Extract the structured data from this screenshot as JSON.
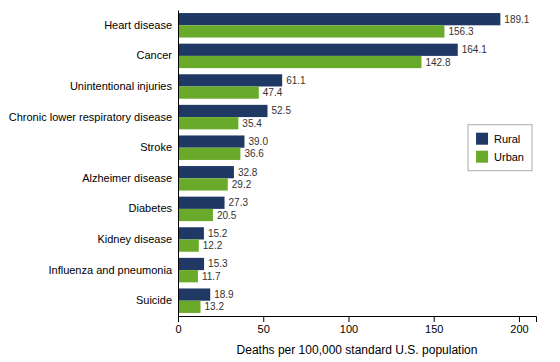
{
  "chart_data": {
    "type": "bar",
    "orientation": "horizontal",
    "categories": [
      "Heart disease",
      "Cancer",
      "Unintentional injuries",
      "Chronic lower respiratory disease",
      "Stroke",
      "Alzheimer disease",
      "Diabetes",
      "Kidney disease",
      "Influenza and pneumonia",
      "Suicide"
    ],
    "series": [
      {
        "name": "Rural",
        "color": "#1f3864",
        "values": [
          189.1,
          164.1,
          61.1,
          52.5,
          39.0,
          32.8,
          27.3,
          15.2,
          15.3,
          18.9
        ],
        "value_labels": [
          "189.1",
          "164.1",
          "61.1",
          "52.5",
          "39.0",
          "32.8",
          "27.3",
          "15.2",
          "15.3",
          "18.9"
        ]
      },
      {
        "name": "Urban",
        "color": "#6aaa2a",
        "values": [
          156.3,
          142.8,
          47.4,
          35.4,
          36.6,
          29.2,
          20.5,
          12.2,
          11.7,
          13.2
        ],
        "value_labels": [
          "156.3",
          "142.8",
          "47.4",
          "35.4",
          "36.6",
          "29.2",
          "20.5",
          "12.2",
          "11.7",
          "13.2"
        ]
      }
    ],
    "xlabel": "Deaths per 100,000 standard U.S. population",
    "xlim": [
      0,
      210
    ],
    "xticks": [
      0,
      50,
      100,
      150,
      200
    ],
    "data_labels": true,
    "legend": "right",
    "grid": false
  }
}
